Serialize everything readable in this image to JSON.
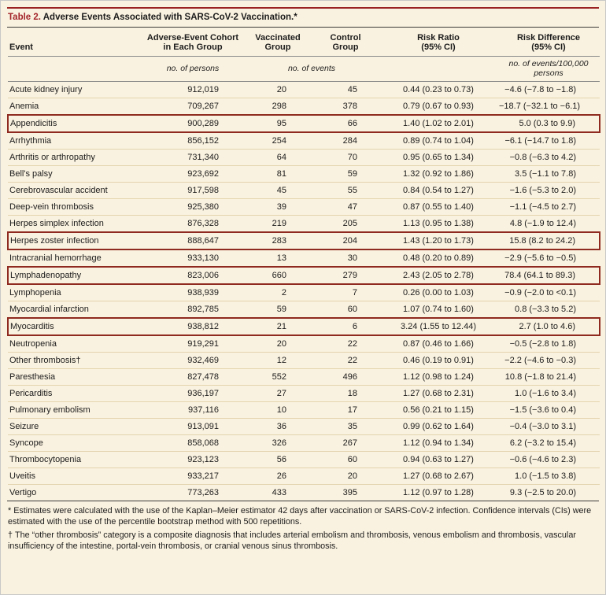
{
  "title": {
    "label": "Table 2.",
    "text": "Adverse Events Associated with SARS-CoV-2 Vaccination.*"
  },
  "colors": {
    "background": "#faf2e0",
    "accent_red": "#a3252b",
    "highlight_box": "#8e2a1f",
    "row_divider": "#e3d4ae"
  },
  "table": {
    "headers": {
      "event": "Event",
      "cohort": "Adverse-Event Cohort in Each Group",
      "vaccinated": "Vaccinated Group",
      "control": "Control Group",
      "risk_ratio": "Risk Ratio (95% CI)",
      "risk_difference": "Risk Difference (95% CI)"
    },
    "units": {
      "persons": "no. of persons",
      "events": "no. of events",
      "rate": "no. of events/100,000 persons"
    },
    "rows": [
      {
        "event": "Acute kidney injury",
        "cohort": "912,019",
        "vaccinated": "20",
        "control": "45",
        "risk_ratio": "0.44 (0.23 to 0.73)",
        "risk_difference": "−4.6 (−7.8 to −1.8)",
        "highlight": false
      },
      {
        "event": "Anemia",
        "cohort": "709,267",
        "vaccinated": "298",
        "control": "378",
        "risk_ratio": "0.79 (0.67 to 0.93)",
        "risk_difference": "−18.7 (−32.1 to −6.1)",
        "highlight": false
      },
      {
        "event": "Appendicitis",
        "cohort": "900,289",
        "vaccinated": "95",
        "control": "66",
        "risk_ratio": "1.40 (1.02 to 2.01)",
        "risk_difference": "5.0 (0.3 to 9.9)",
        "highlight": true
      },
      {
        "event": "Arrhythmia",
        "cohort": "856,152",
        "vaccinated": "254",
        "control": "284",
        "risk_ratio": "0.89 (0.74 to 1.04)",
        "risk_difference": "−6.1 (−14.7 to 1.8)",
        "highlight": false
      },
      {
        "event": "Arthritis or arthropathy",
        "cohort": "731,340",
        "vaccinated": "64",
        "control": "70",
        "risk_ratio": "0.95 (0.65 to 1.34)",
        "risk_difference": "−0.8 (−6.3 to 4.2)",
        "highlight": false
      },
      {
        "event": "Bell's palsy",
        "cohort": "923,692",
        "vaccinated": "81",
        "control": "59",
        "risk_ratio": "1.32 (0.92 to 1.86)",
        "risk_difference": "3.5 (−1.1 to 7.8)",
        "highlight": false
      },
      {
        "event": "Cerebrovascular accident",
        "cohort": "917,598",
        "vaccinated": "45",
        "control": "55",
        "risk_ratio": "0.84 (0.54 to 1.27)",
        "risk_difference": "−1.6 (−5.3 to 2.0)",
        "highlight": false
      },
      {
        "event": "Deep-vein thrombosis",
        "cohort": "925,380",
        "vaccinated": "39",
        "control": "47",
        "risk_ratio": "0.87 (0.55 to 1.40)",
        "risk_difference": "−1.1 (−4.5 to 2.7)",
        "highlight": false
      },
      {
        "event": "Herpes simplex infection",
        "cohort": "876,328",
        "vaccinated": "219",
        "control": "205",
        "risk_ratio": "1.13 (0.95 to 1.38)",
        "risk_difference": "4.8 (−1.9 to 12.4)",
        "highlight": false
      },
      {
        "event": "Herpes zoster infection",
        "cohort": "888,647",
        "vaccinated": "283",
        "control": "204",
        "risk_ratio": "1.43 (1.20 to 1.73)",
        "risk_difference": "15.8 (8.2 to 24.2)",
        "highlight": true
      },
      {
        "event": "Intracranial hemorrhage",
        "cohort": "933,130",
        "vaccinated": "13",
        "control": "30",
        "risk_ratio": "0.48 (0.20 to 0.89)",
        "risk_difference": "−2.9 (−5.6 to −0.5)",
        "highlight": false
      },
      {
        "event": "Lymphadenopathy",
        "cohort": "823,006",
        "vaccinated": "660",
        "control": "279",
        "risk_ratio": "2.43 (2.05 to 2.78)",
        "risk_difference": "78.4 (64.1 to 89.3)",
        "highlight": true
      },
      {
        "event": "Lymphopenia",
        "cohort": "938,939",
        "vaccinated": "2",
        "control": "7",
        "risk_ratio": "0.26 (0.00 to 1.03)",
        "risk_difference": "−0.9 (−2.0 to <0.1)",
        "highlight": false
      },
      {
        "event": "Myocardial infarction",
        "cohort": "892,785",
        "vaccinated": "59",
        "control": "60",
        "risk_ratio": "1.07 (0.74 to 1.60)",
        "risk_difference": "0.8 (−3.3 to 5.2)",
        "highlight": false
      },
      {
        "event": "Myocarditis",
        "cohort": "938,812",
        "vaccinated": "21",
        "control": "6",
        "risk_ratio": "3.24 (1.55 to 12.44)",
        "risk_difference": "2.7 (1.0 to 4.6)",
        "highlight": true
      },
      {
        "event": "Neutropenia",
        "cohort": "919,291",
        "vaccinated": "20",
        "control": "22",
        "risk_ratio": "0.87 (0.46 to 1.66)",
        "risk_difference": "−0.5 (−2.8 to 1.8)",
        "highlight": false
      },
      {
        "event": "Other thrombosis†",
        "cohort": "932,469",
        "vaccinated": "12",
        "control": "22",
        "risk_ratio": "0.46 (0.19 to 0.91)",
        "risk_difference": "−2.2 (−4.6 to −0.3)",
        "highlight": false
      },
      {
        "event": "Paresthesia",
        "cohort": "827,478",
        "vaccinated": "552",
        "control": "496",
        "risk_ratio": "1.12 (0.98 to 1.24)",
        "risk_difference": "10.8 (−1.8 to 21.4)",
        "highlight": false
      },
      {
        "event": "Pericarditis",
        "cohort": "936,197",
        "vaccinated": "27",
        "control": "18",
        "risk_ratio": "1.27 (0.68 to 2.31)",
        "risk_difference": "1.0 (−1.6 to 3.4)",
        "highlight": false
      },
      {
        "event": "Pulmonary embolism",
        "cohort": "937,116",
        "vaccinated": "10",
        "control": "17",
        "risk_ratio": "0.56 (0.21 to 1.15)",
        "risk_difference": "−1.5 (−3.6 to 0.4)",
        "highlight": false
      },
      {
        "event": "Seizure",
        "cohort": "913,091",
        "vaccinated": "36",
        "control": "35",
        "risk_ratio": "0.99 (0.62 to 1.64)",
        "risk_difference": "−0.4 (−3.0 to 3.1)",
        "highlight": false
      },
      {
        "event": "Syncope",
        "cohort": "858,068",
        "vaccinated": "326",
        "control": "267",
        "risk_ratio": "1.12 (0.94 to 1.34)",
        "risk_difference": "6.2 (−3.2 to 15.4)",
        "highlight": false
      },
      {
        "event": "Thrombocytopenia",
        "cohort": "923,123",
        "vaccinated": "56",
        "control": "60",
        "risk_ratio": "0.94 (0.63 to 1.27)",
        "risk_difference": "−0.6 (−4.6 to 2.3)",
        "highlight": false
      },
      {
        "event": "Uveitis",
        "cohort": "933,217",
        "vaccinated": "26",
        "control": "20",
        "risk_ratio": "1.27 (0.68 to 2.67)",
        "risk_difference": "1.0 (−1.5 to 3.8)",
        "highlight": false
      },
      {
        "event": "Vertigo",
        "cohort": "773,263",
        "vaccinated": "433",
        "control": "395",
        "risk_ratio": "1.12 (0.97 to 1.28)",
        "risk_difference": "9.3 (−2.5 to 20.0)",
        "highlight": false
      }
    ]
  },
  "footnotes": [
    {
      "marker": "*",
      "text": "Estimates were calculated with the use of the Kaplan–Meier estimator 42 days after vaccination or SARS-CoV-2 infection. Confidence intervals (CIs) were estimated with the use of the percentile bootstrap method with 500 repetitions."
    },
    {
      "marker": "†",
      "text": "The “other thrombosis” category is a composite diagnosis that includes arterial embolism and thrombosis, venous embolism and thrombosis, vascular insufficiency of the intestine, portal-vein thrombosis, or cranial venous sinus thrombosis."
    }
  ]
}
